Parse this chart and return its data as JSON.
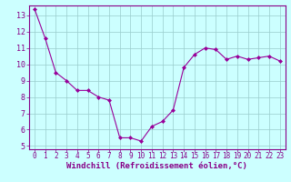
{
  "x": [
    0,
    1,
    2,
    3,
    4,
    5,
    6,
    7,
    8,
    9,
    10,
    11,
    12,
    13,
    14,
    15,
    16,
    17,
    18,
    19,
    20,
    21,
    22,
    23
  ],
  "y": [
    13.4,
    11.6,
    9.5,
    9.0,
    8.4,
    8.4,
    8.0,
    7.8,
    5.5,
    5.5,
    5.3,
    6.2,
    6.5,
    7.2,
    9.8,
    10.6,
    11.0,
    10.9,
    10.3,
    10.5,
    10.3,
    10.4,
    10.5,
    10.2
  ],
  "line_color": "#990099",
  "marker": "D",
  "marker_size": 2,
  "bg_color": "#ccffff",
  "grid_color": "#99cccc",
  "xlabel": "Windchill (Refroidissement éolien,°C)",
  "ylim": [
    4.8,
    13.6
  ],
  "xlim": [
    -0.5,
    23.5
  ],
  "yticks": [
    5,
    6,
    7,
    8,
    9,
    10,
    11,
    12,
    13
  ],
  "xticks": [
    0,
    1,
    2,
    3,
    4,
    5,
    6,
    7,
    8,
    9,
    10,
    11,
    12,
    13,
    14,
    15,
    16,
    17,
    18,
    19,
    20,
    21,
    22,
    23
  ],
  "tick_color": "#880088",
  "xlabel_fontsize": 6.5,
  "xtick_fontsize": 5.5,
  "ytick_fontsize": 6.0,
  "spine_color": "#880088"
}
